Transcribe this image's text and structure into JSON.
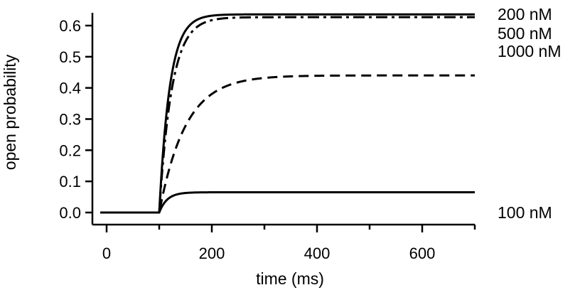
{
  "chart_data": {
    "type": "line",
    "title": "",
    "xlabel": "time (ms)",
    "ylabel": "open probability",
    "xlim": [
      -12,
      700
    ],
    "ylim": [
      -0.02,
      0.64
    ],
    "xticks": [
      0,
      200,
      400,
      600
    ],
    "xtick_labels": [
      "0",
      "200",
      "400",
      "600"
    ],
    "xticks_minor": [
      100,
      300,
      500,
      700
    ],
    "yticks": [
      0.0,
      0.1,
      0.2,
      0.3,
      0.4,
      0.5,
      0.6
    ],
    "ytick_labels": [
      "0.0",
      "0.1",
      "0.2",
      "0.3",
      "0.4",
      "0.5",
      "0.6"
    ],
    "grid": false,
    "legend": "none",
    "model": "p(t) = 0 for t < 100 ms; p(t) = plateau * (1 - exp(-(t - 100) / tau)) for t >= 100 ms",
    "series": [
      {
        "name": "200 nM",
        "label": "200 nM",
        "style": "solid",
        "plateau": 0.636,
        "tau_ms": 20,
        "color": "#000000"
      },
      {
        "name": "500 nM",
        "label": "500 nM",
        "style": "dash-dot",
        "plateau": 0.627,
        "tau_ms": 24,
        "color": "#000000"
      },
      {
        "name": "1000 nM",
        "label": "1000 nM",
        "style": "dashed",
        "plateau": 0.44,
        "tau_ms": 50,
        "color": "#000000"
      },
      {
        "name": "100 nM",
        "label": "100 nM",
        "style": "solid",
        "plateau": 0.065,
        "tau_ms": 15,
        "color": "#000000"
      }
    ],
    "curve_labels_order": [
      "200 nM",
      "500 nM",
      "1000 nM",
      "100 nM"
    ],
    "curve_label_values": [
      0.636,
      0.575,
      0.518,
      0.0
    ]
  }
}
